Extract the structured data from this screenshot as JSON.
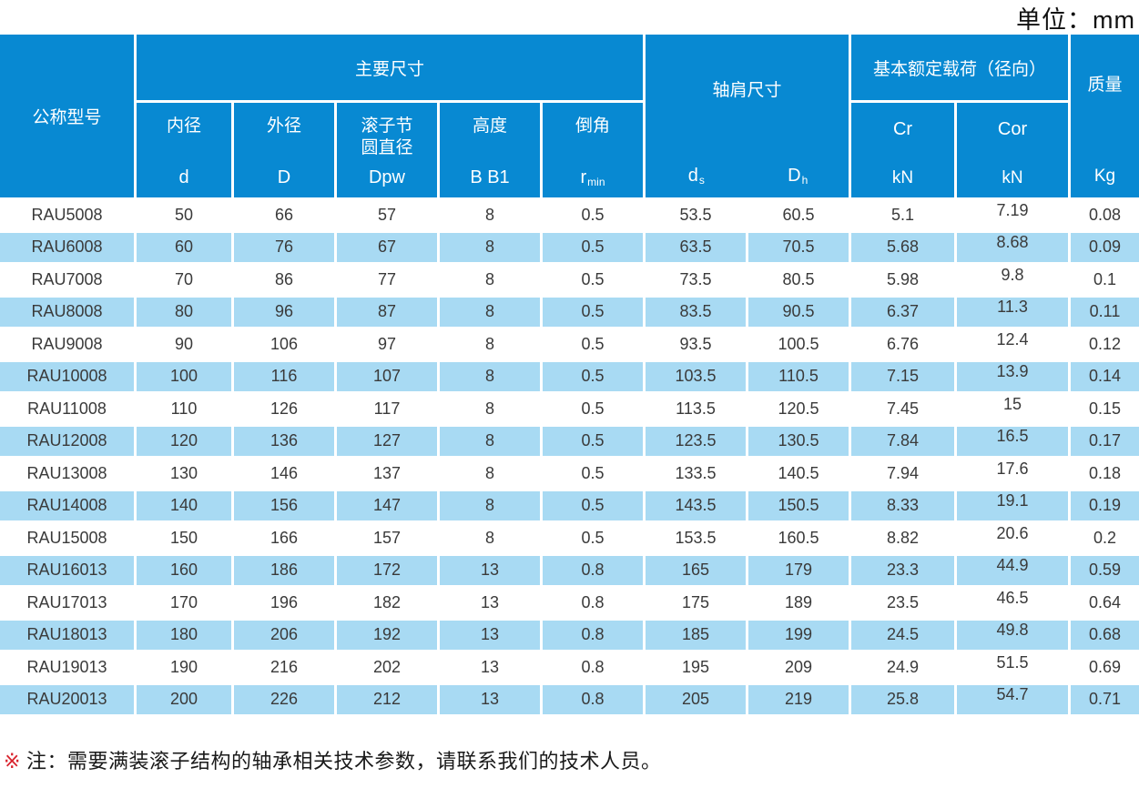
{
  "unit_label": "单位：mm",
  "colors": {
    "header_blue": "#0889d2",
    "row_alt_blue": "#a8daf3",
    "note_mark_red": "#d9232d",
    "body_text": "#3a3a3a",
    "header_text": "#ffffff"
  },
  "header": {
    "model": "公称型号",
    "main_dims": "主要尺寸",
    "sub": [
      {
        "l1": "内径",
        "l2": "",
        "sym": "d",
        "sym_sub": ""
      },
      {
        "l1": "外径",
        "l2": "",
        "sym": "D",
        "sym_sub": ""
      },
      {
        "l1": "滚子节",
        "l2": "圆直径",
        "sym": "Dpw",
        "sym_sub": ""
      },
      {
        "l1": "高度",
        "l2": "",
        "sym": "B B1",
        "sym_sub": ""
      },
      {
        "l1": "倒角",
        "l2": "",
        "sym": "r",
        "sym_sub": "min"
      }
    ],
    "shoulder": {
      "label": "轴肩尺寸",
      "c1": "d",
      "c1s": "s",
      "c2": "D",
      "c2s": "h"
    },
    "load": {
      "label": "基本额定载荷（径向）",
      "cr": "Cr",
      "cor": "Cor",
      "cr_unit": "kN",
      "cor_unit": "kN"
    },
    "mass": {
      "label": "质量",
      "unit": "Kg"
    }
  },
  "rows": [
    {
      "model": "RAU5008",
      "d": "50",
      "D": "66",
      "Dpw": "57",
      "B": "8",
      "r": "0.5",
      "ds": "53.5",
      "Dh": "60.5",
      "Cr": "5.1",
      "Cor": "7.19",
      "kg": "0.08"
    },
    {
      "model": "RAU6008",
      "d": "60",
      "D": "76",
      "Dpw": "67",
      "B": "8",
      "r": "0.5",
      "ds": "63.5",
      "Dh": "70.5",
      "Cr": "5.68",
      "Cor": "8.68",
      "kg": "0.09"
    },
    {
      "model": "RAU7008",
      "d": "70",
      "D": "86",
      "Dpw": "77",
      "B": "8",
      "r": "0.5",
      "ds": "73.5",
      "Dh": "80.5",
      "Cr": "5.98",
      "Cor": "9.8",
      "kg": "0.1"
    },
    {
      "model": "RAU8008",
      "d": "80",
      "D": "96",
      "Dpw": "87",
      "B": "8",
      "r": "0.5",
      "ds": "83.5",
      "Dh": "90.5",
      "Cr": "6.37",
      "Cor": "11.3",
      "kg": "0.11"
    },
    {
      "model": "RAU9008",
      "d": "90",
      "D": "106",
      "Dpw": "97",
      "B": "8",
      "r": "0.5",
      "ds": "93.5",
      "Dh": "100.5",
      "Cr": "6.76",
      "Cor": "12.4",
      "kg": "0.12"
    },
    {
      "model": "RAU10008",
      "d": "100",
      "D": "116",
      "Dpw": "107",
      "B": "8",
      "r": "0.5",
      "ds": "103.5",
      "Dh": "110.5",
      "Cr": "7.15",
      "Cor": "13.9",
      "kg": "0.14"
    },
    {
      "model": "RAU11008",
      "d": "110",
      "D": "126",
      "Dpw": "117",
      "B": "8",
      "r": "0.5",
      "ds": "113.5",
      "Dh": "120.5",
      "Cr": "7.45",
      "Cor": "15",
      "kg": "0.15"
    },
    {
      "model": "RAU12008",
      "d": "120",
      "D": "136",
      "Dpw": "127",
      "B": "8",
      "r": "0.5",
      "ds": "123.5",
      "Dh": "130.5",
      "Cr": "7.84",
      "Cor": "16.5",
      "kg": "0.17"
    },
    {
      "model": "RAU13008",
      "d": "130",
      "D": "146",
      "Dpw": "137",
      "B": "8",
      "r": "0.5",
      "ds": "133.5",
      "Dh": "140.5",
      "Cr": "7.94",
      "Cor": "17.6",
      "kg": "0.18"
    },
    {
      "model": "RAU14008",
      "d": "140",
      "D": "156",
      "Dpw": "147",
      "B": "8",
      "r": "0.5",
      "ds": "143.5",
      "Dh": "150.5",
      "Cr": "8.33",
      "Cor": "19.1",
      "kg": "0.19"
    },
    {
      "model": "RAU15008",
      "d": "150",
      "D": "166",
      "Dpw": "157",
      "B": "8",
      "r": "0.5",
      "ds": "153.5",
      "Dh": "160.5",
      "Cr": "8.82",
      "Cor": "20.6",
      "kg": "0.2"
    },
    {
      "model": "RAU16013",
      "d": "160",
      "D": "186",
      "Dpw": "172",
      "B": "13",
      "r": "0.8",
      "ds": "165",
      "Dh": "179",
      "Cr": "23.3",
      "Cor": "44.9",
      "kg": "0.59"
    },
    {
      "model": "RAU17013",
      "d": "170",
      "D": "196",
      "Dpw": "182",
      "B": "13",
      "r": "0.8",
      "ds": "175",
      "Dh": "189",
      "Cr": "23.5",
      "Cor": "46.5",
      "kg": "0.64"
    },
    {
      "model": "RAU18013",
      "d": "180",
      "D": "206",
      "Dpw": "192",
      "B": "13",
      "r": "0.8",
      "ds": "185",
      "Dh": "199",
      "Cr": "24.5",
      "Cor": "49.8",
      "kg": "0.68"
    },
    {
      "model": "RAU19013",
      "d": "190",
      "D": "216",
      "Dpw": "202",
      "B": "13",
      "r": "0.8",
      "ds": "195",
      "Dh": "209",
      "Cr": "24.9",
      "Cor": "51.5",
      "kg": "0.69"
    },
    {
      "model": "RAU20013",
      "d": "200",
      "D": "226",
      "Dpw": "212",
      "B": "13",
      "r": "0.8",
      "ds": "205",
      "Dh": "219",
      "Cr": "25.8",
      "Cor": "54.7",
      "kg": "0.71"
    }
  ],
  "note": {
    "mark": "※",
    "text": "注：需要满装滚子结构的轴承相关技术参数，请联系我们的技术人员。"
  }
}
